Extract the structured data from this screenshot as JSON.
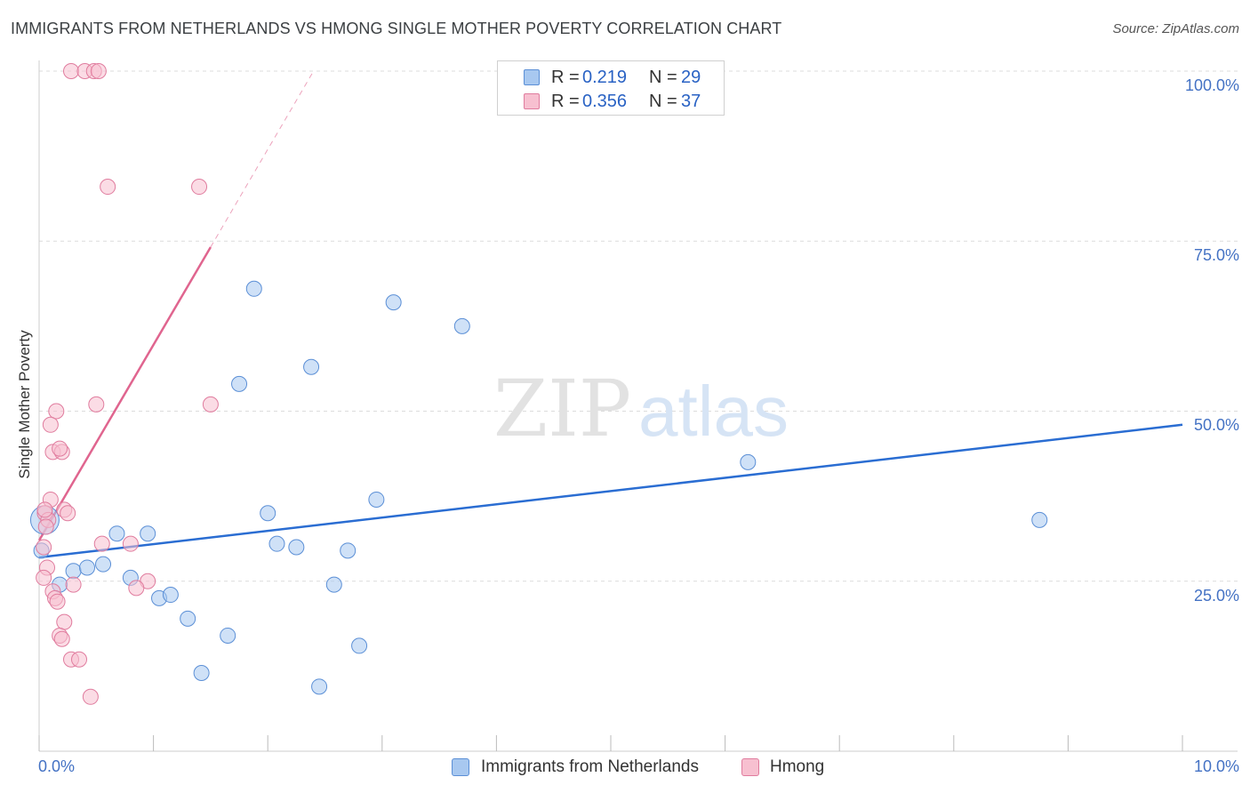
{
  "chart_data": {
    "type": "scatter",
    "title": "IMMIGRANTS FROM NETHERLANDS VS HMONG SINGLE MOTHER POVERTY CORRELATION CHART",
    "source": "Source: ZipAtlas.com",
    "xlabel": "",
    "ylabel": "Single Mother Poverty",
    "xlim": [
      0,
      10
    ],
    "ylim": [
      0,
      100
    ],
    "x_tick_labels": [
      "0.0%",
      "10.0%"
    ],
    "y_ticks": [
      25,
      50,
      75,
      100
    ],
    "y_tick_labels": [
      "25.0%",
      "50.0%",
      "75.0%",
      "100.0%"
    ],
    "grid": true,
    "watermark": "ZIPatlas",
    "legend": [
      {
        "r_label": "R =",
        "r_value": "0.219",
        "n_label": "N =",
        "n_value": "29"
      },
      {
        "r_label": "R =",
        "r_value": "0.356",
        "n_label": "N =",
        "n_value": "37"
      }
    ],
    "series": [
      {
        "name": "Immigrants from Netherlands",
        "color": "#a8c8f0",
        "stroke": "#5b8fd6",
        "line_color": "#2a6dd2",
        "trend": {
          "x0": 0.0,
          "y0": 28.5,
          "x1": 10.0,
          "y1": 48.0,
          "dashed_from": null
        },
        "x": [
          0.02,
          0.18,
          0.3,
          0.42,
          0.56,
          0.68,
          0.8,
          0.95,
          1.05,
          1.15,
          1.3,
          1.42,
          1.65,
          1.75,
          1.88,
          2.0,
          2.08,
          2.25,
          2.38,
          2.45,
          2.58,
          2.7,
          2.8,
          2.95,
          3.1,
          3.7,
          6.2,
          8.75,
          0.05
        ],
        "y": [
          29.5,
          24.5,
          26.5,
          27.0,
          27.5,
          32.0,
          25.5,
          32.0,
          22.5,
          23.0,
          19.5,
          11.5,
          17.0,
          54.0,
          68.0,
          35.0,
          30.5,
          30.0,
          56.5,
          9.5,
          24.5,
          29.5,
          15.5,
          37.0,
          66.0,
          62.5,
          42.5,
          34.0,
          34.0
        ]
      },
      {
        "name": "Hmong",
        "color": "#f7c0d0",
        "stroke": "#e07c9e",
        "line_color": "#e0658f",
        "trend": {
          "x0": 0.0,
          "y0": 31.0,
          "x1": 2.4,
          "y1": 100.0,
          "dashed_from": 1.5
        },
        "x": [
          0.28,
          0.4,
          0.48,
          0.52,
          0.6,
          1.4,
          0.5,
          1.5,
          0.15,
          0.1,
          0.12,
          0.2,
          0.18,
          0.1,
          0.22,
          0.25,
          0.05,
          0.08,
          0.06,
          0.04,
          0.07,
          0.04,
          0.3,
          0.12,
          0.14,
          0.16,
          0.22,
          0.18,
          0.2,
          0.28,
          0.35,
          0.45,
          0.55,
          0.95,
          0.85,
          0.8,
          0.05
        ],
        "y": [
          100.0,
          100.0,
          100.0,
          100.0,
          83.0,
          83.0,
          51.0,
          51.0,
          50.0,
          48.0,
          44.0,
          44.0,
          44.5,
          37.0,
          35.5,
          35.0,
          35.0,
          34.0,
          33.0,
          30.0,
          27.0,
          25.5,
          24.5,
          23.5,
          22.5,
          22.0,
          19.0,
          17.0,
          16.5,
          13.5,
          13.5,
          8.0,
          30.5,
          25.0,
          24.0,
          30.5,
          35.5
        ]
      }
    ]
  }
}
